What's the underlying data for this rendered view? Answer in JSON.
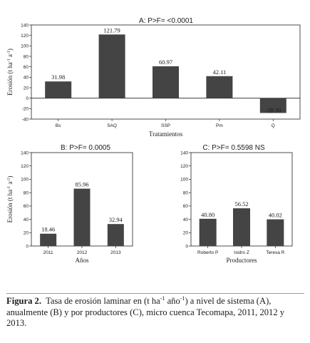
{
  "caption": {
    "label": "Figura 2.",
    "text_1": "Tasa de erosión laminar en (t ha",
    "sup_1": "-1",
    "text_2": " año",
    "sup_2": "-1",
    "text_3": ") a nivel de sistema (A), anualmente (B) y por productores (C), micro cuenca Tecomapa, 2011, 2012 y 2013."
  },
  "chart_data": [
    {
      "type": "bar",
      "title": "A: P>F= <0.0001",
      "categories": [
        "Bs",
        "SAQ",
        "SSP",
        "Pm",
        "Q"
      ],
      "values": [
        31.98,
        121.79,
        60.97,
        42.11,
        -28.3
      ],
      "value_labels": [
        "31.98",
        "121.79",
        "60.97",
        "42.11",
        "-28.30"
      ],
      "xlabel": "Tratamientos",
      "ylabel": "Erosión (t ha-1 a-1)",
      "ylabel_parts": [
        "Erosión (t ha",
        "-1",
        " a",
        "-1",
        ")"
      ],
      "ylim": [
        -40,
        140
      ],
      "yticks": [
        -40,
        -20,
        0,
        20,
        40,
        60,
        80,
        100,
        120,
        140
      ],
      "bar_color": "#444444"
    },
    {
      "type": "bar",
      "title": "B: P>F= 0.0005",
      "categories": [
        "2011",
        "2012",
        "2013"
      ],
      "values": [
        18.46,
        85.96,
        32.94
      ],
      "value_labels": [
        "18.46",
        "85.96",
        "32.94"
      ],
      "xlabel": "Años",
      "ylabel": "Erosión (t ha-1 a-1)",
      "ylabel_parts": [
        "Erosión (t ha",
        "-1",
        " a",
        "-1",
        ")"
      ],
      "ylim": [
        0,
        140
      ],
      "yticks": [
        0,
        20,
        40,
        60,
        80,
        100,
        120,
        140
      ],
      "bar_color": "#444444"
    },
    {
      "type": "bar",
      "title": "C: P>F= 0.5598 NS",
      "categories": [
        "Roberto P",
        "Isidro Z",
        "Teresa R"
      ],
      "values": [
        40.8,
        56.52,
        40.02
      ],
      "value_labels": [
        "40.80",
        "56.52",
        "40.02"
      ],
      "xlabel": "Productores",
      "ylabel": "",
      "ylim": [
        0,
        140
      ],
      "yticks": [
        0,
        20,
        40,
        60,
        80,
        100,
        120,
        140
      ],
      "bar_color": "#444444"
    }
  ]
}
